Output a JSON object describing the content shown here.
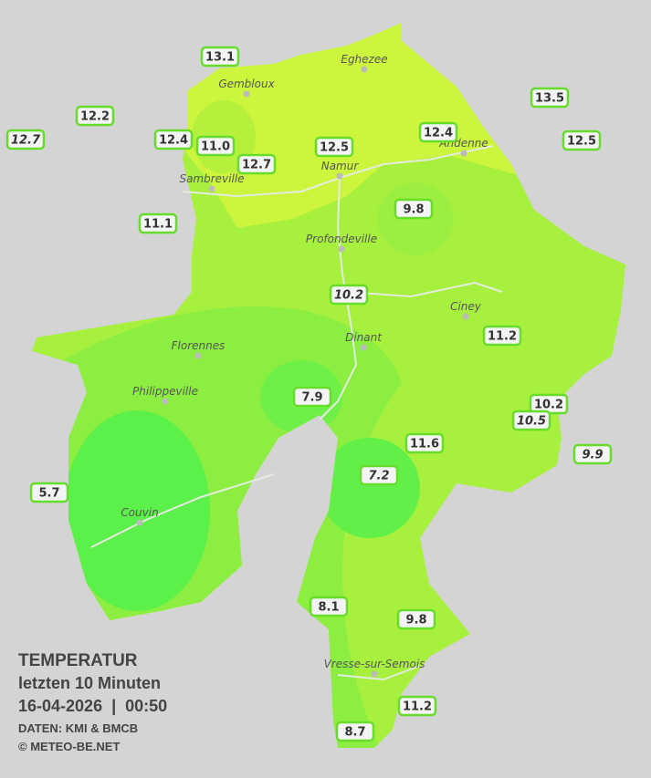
{
  "legend": {
    "title": "TEMPERATUR",
    "period": "letzten 10 Minuten",
    "timestamp": "16-04-2026  |  00:50",
    "source": "DATEN: KMI & BMCB",
    "copyright": "© METEO-BE.NET"
  },
  "cities": [
    "Eghezee",
    "Gembloux",
    "Andenne",
    "Namur",
    "Sambreville",
    "Profondeville",
    "Ciney",
    "Dinant",
    "Florennes",
    "Philippeville",
    "Couvin",
    "Vresse-sur-Semois"
  ],
  "stations": [
    {
      "label": "13.1",
      "italic": false
    },
    {
      "label": "12.2",
      "italic": false
    },
    {
      "label": "12.7",
      "italic": true
    },
    {
      "label": "12.4",
      "italic": false
    },
    {
      "label": "11.0",
      "italic": false
    },
    {
      "label": "12.7",
      "italic": false
    },
    {
      "label": "12.5",
      "italic": false
    },
    {
      "label": "12.4",
      "italic": false
    },
    {
      "label": "13.5",
      "italic": false
    },
    {
      "label": "12.5",
      "italic": false
    },
    {
      "label": "9.8",
      "italic": false
    },
    {
      "label": "11.1",
      "italic": false
    },
    {
      "label": "10.2",
      "italic": true
    },
    {
      "label": "11.2",
      "italic": false
    },
    {
      "label": "7.9",
      "italic": false
    },
    {
      "label": "10.2",
      "italic": false
    },
    {
      "label": "10.5",
      "italic": true
    },
    {
      "label": "11.6",
      "italic": false
    },
    {
      "label": "9.9",
      "italic": true
    },
    {
      "label": "7.2",
      "italic": true
    },
    {
      "label": "5.7",
      "italic": false
    },
    {
      "label": "8.1",
      "italic": false
    },
    {
      "label": "9.8",
      "italic": false
    },
    {
      "label": "11.2",
      "italic": false
    },
    {
      "label": "8.7",
      "italic": false
    }
  ]
}
